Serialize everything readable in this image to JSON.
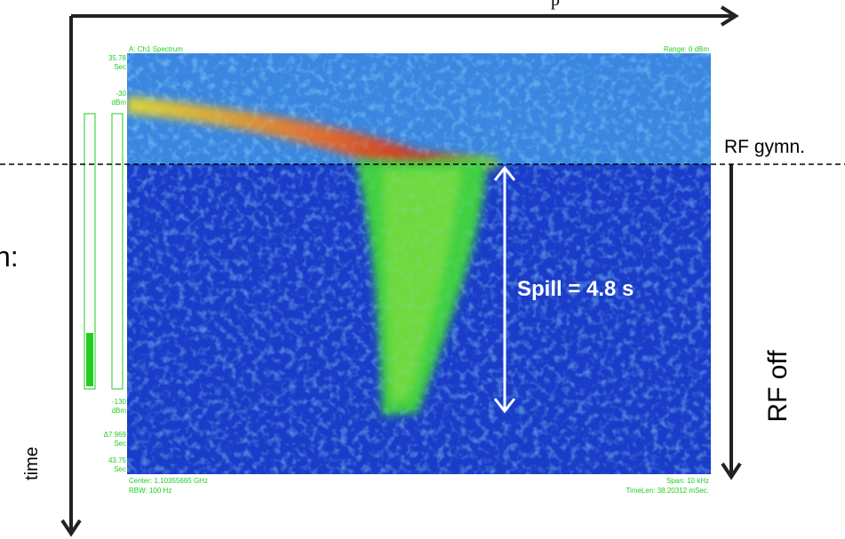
{
  "analyzer": {
    "title": "A: Ch1 Spectrum",
    "range": "Range: 0 dBm",
    "scale_labels": [
      [
        "35.78",
        "Sec"
      ],
      [
        "-30",
        "dBm"
      ],
      [
        "-130",
        "dBm"
      ],
      [
        "Δ7.969",
        "Sec"
      ],
      [
        "43.75",
        "Sec"
      ]
    ],
    "footer_left": [
      "Center: 1.10355665 GHz",
      "RBW: 100  Hz"
    ],
    "footer_right": [
      "Span: 10 kHz",
      "TimeLen: 38.20312 mSec."
    ]
  },
  "annotations": {
    "rf_gymn": "RF gymn.",
    "spill": "Spill = 4.8 s",
    "rf_off": "RF off",
    "time": "time",
    "fragment_top": "p",
    "fragment_left": "n:"
  }
}
